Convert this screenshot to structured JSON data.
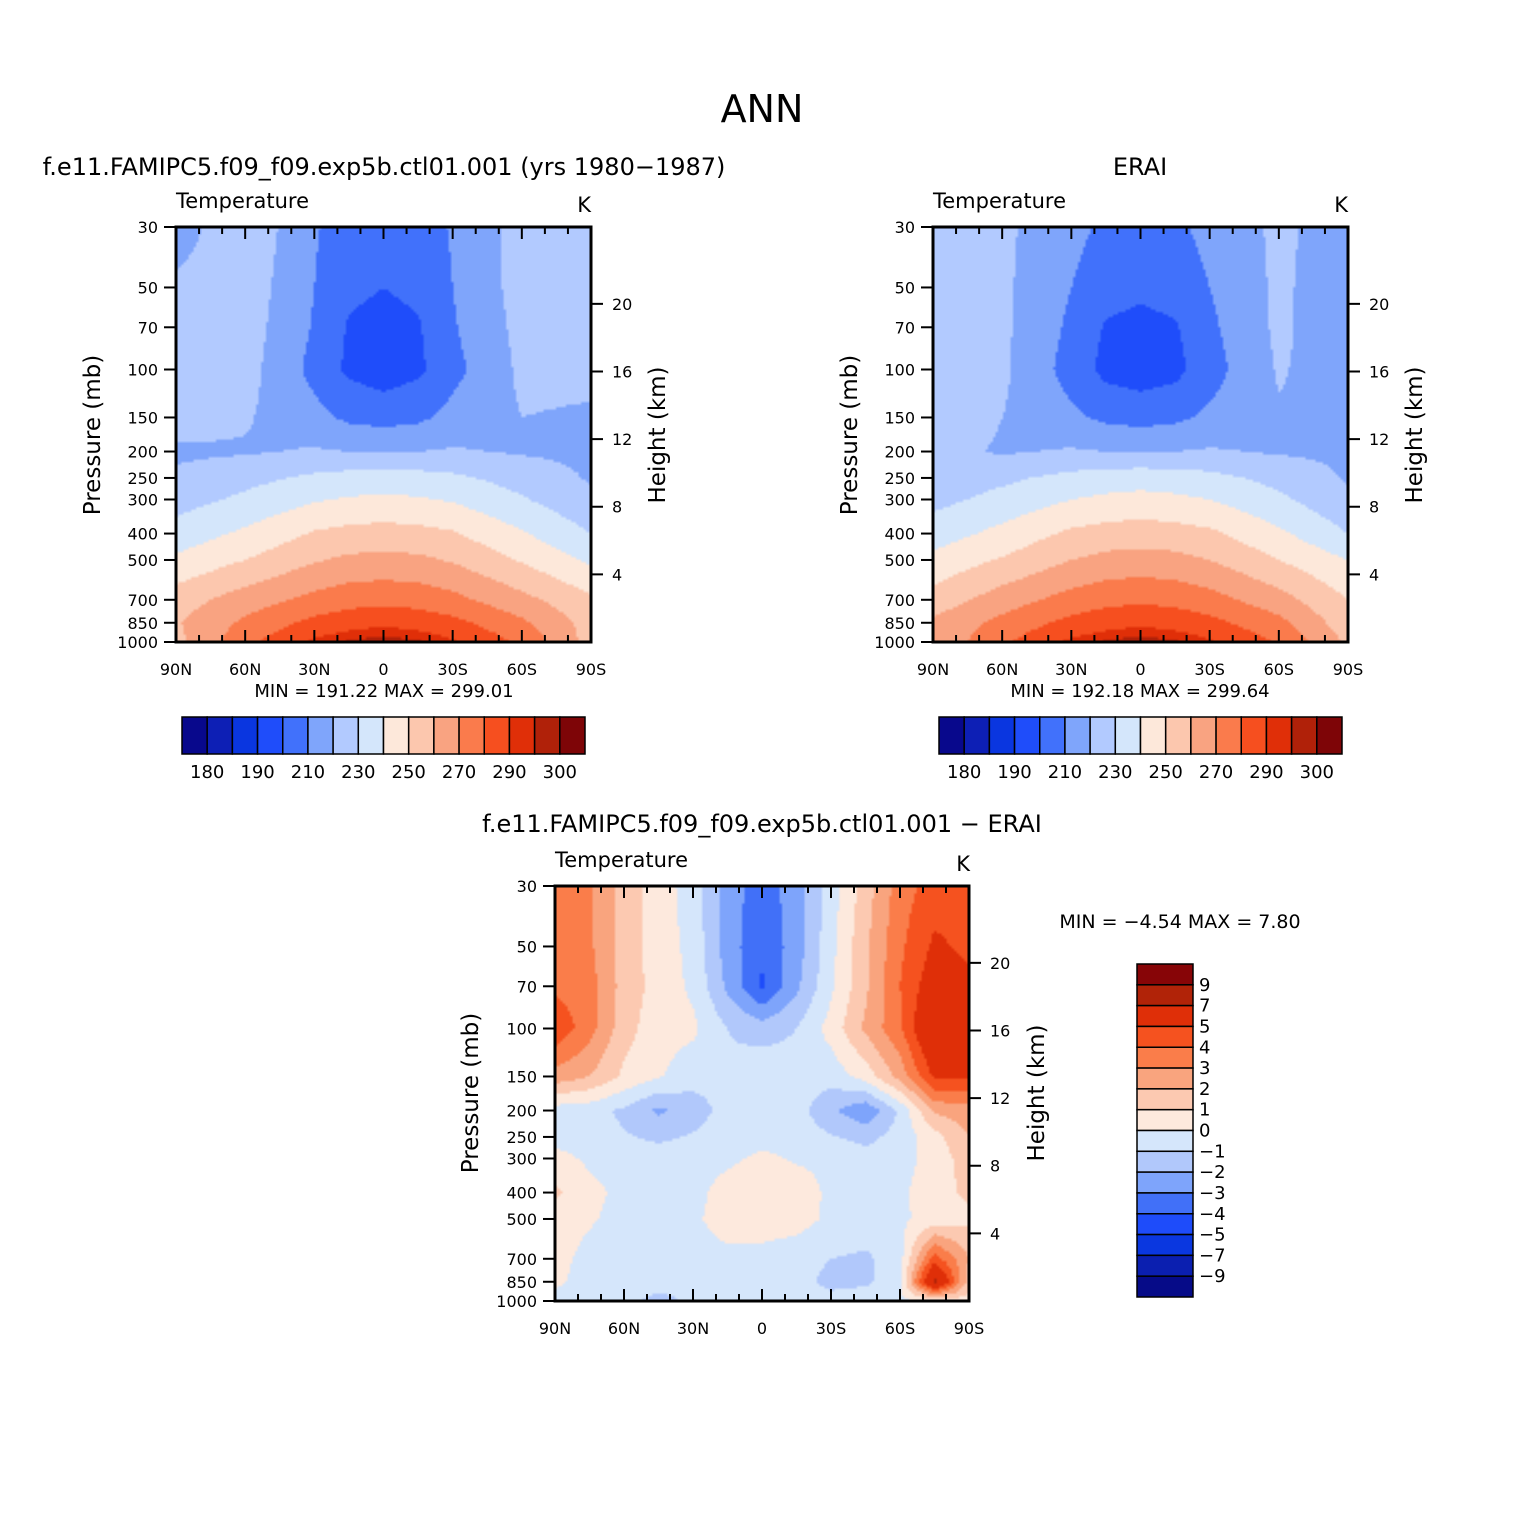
{
  "figure_title": "ANN",
  "colors": {
    "abs_palette": [
      "#08088c",
      "#0d1fb5",
      "#0a36e0",
      "#1f4dfa",
      "#4171fb",
      "#7fa5fb",
      "#b2caff",
      "#d4e6fb",
      "#fde8da",
      "#fcc7ae",
      "#f9a381",
      "#fa7b4c",
      "#f64f1f",
      "#e02f08",
      "#b02109",
      "#7e0507"
    ],
    "diff_palette": [
      "#060b88",
      "#0b1fb0",
      "#0a37e0",
      "#1e4cfa",
      "#4170f8",
      "#7ea4fb",
      "#b1c8fb",
      "#d5e6fb",
      "#fde9dd",
      "#fcc9b1",
      "#f9a47e",
      "#fa7d4a",
      "#f5521f",
      "#df2f08",
      "#b12308",
      "#870507"
    ]
  },
  "chart_data": [
    {
      "id": "model",
      "type": "heatmap",
      "title": "f.e11.FAMIPC5.f09_f09.exp5b.ctl01.001 (yrs 1980−1987)",
      "variable": "Temperature",
      "units": "K",
      "ylabel": "Pressure (mb)",
      "ylabel_right": "Height (km)",
      "x_ticks": [
        "90N",
        "60N",
        "30N",
        "0",
        "30S",
        "60S",
        "90S"
      ],
      "y_ticks": [
        "30",
        "50",
        "70",
        "100",
        "150",
        "200",
        "250",
        "300",
        "400",
        "500",
        "700",
        "850",
        "1000"
      ],
      "y_ticks_right": [
        "20",
        "16",
        "12",
        "8",
        "4"
      ],
      "xlim": [
        90,
        -90
      ],
      "ylim_mb": [
        1000,
        30
      ],
      "log_scale_y": true,
      "min_label": "MIN =  191.22   MAX =  299.01",
      "min": 191.22,
      "max": 299.01,
      "levels": [
        "180",
        "190",
        "210",
        "230",
        "250",
        "270",
        "290",
        "300"
      ],
      "palette": "abs_palette",
      "grid": {
        "lat": [
          90,
          60,
          30,
          15,
          0,
          -15,
          -30,
          -60,
          -90
        ],
        "p": [
          30,
          50,
          70,
          100,
          150,
          200,
          250,
          300,
          400,
          500,
          700,
          850,
          1000
        ],
        "values": [
          [
            215,
            228,
            211,
            205,
            203,
            205,
            211,
            224,
            223
          ],
          [
            222,
            226,
            210,
            202,
            200,
            202,
            210,
            224,
            224
          ],
          [
            224,
            225,
            209,
            199,
            197,
            199,
            209,
            223,
            223
          ],
          [
            225,
            224,
            207,
            198,
            195,
            198,
            207,
            222,
            222
          ],
          [
            226,
            221,
            213,
            208,
            206,
            208,
            213,
            220,
            219
          ],
          [
            218,
            219,
            221,
            220,
            220,
            220,
            221,
            219,
            218
          ],
          [
            222,
            227,
            232,
            234,
            234,
            234,
            232,
            226,
            219
          ],
          [
            226,
            232,
            239,
            241,
            242,
            241,
            239,
            231,
            222
          ],
          [
            234,
            242,
            251,
            253,
            254,
            253,
            251,
            241,
            230
          ],
          [
            242,
            250,
            259,
            262,
            263,
            262,
            259,
            249,
            238
          ],
          [
            255,
            265,
            273,
            276,
            277,
            276,
            273,
            263,
            252
          ],
          [
            259,
            272,
            283,
            286,
            288,
            286,
            283,
            272,
            256
          ],
          [
            257,
            277,
            292,
            296,
            298,
            296,
            291,
            278,
            256
          ]
        ]
      }
    },
    {
      "id": "obs",
      "type": "heatmap",
      "title": "ERAI",
      "variable": "Temperature",
      "units": "K",
      "ylabel": "Pressure (mb)",
      "ylabel_right": "Height (km)",
      "x_ticks": [
        "90N",
        "60N",
        "30N",
        "0",
        "30S",
        "60S",
        "90S"
      ],
      "y_ticks": [
        "30",
        "50",
        "70",
        "100",
        "150",
        "200",
        "250",
        "300",
        "400",
        "500",
        "700",
        "850",
        "1000"
      ],
      "y_ticks_right": [
        "20",
        "16",
        "12",
        "8",
        "4"
      ],
      "xlim": [
        90,
        -90
      ],
      "ylim_mb": [
        1000,
        30
      ],
      "log_scale_y": true,
      "min_label": "MIN =  192.18   MAX =  299.64",
      "min": 192.18,
      "max": 299.64,
      "levels": [
        "180",
        "190",
        "210",
        "230",
        "250",
        "270",
        "290",
        "300"
      ],
      "palette": "abs_palette",
      "grid": {
        "lat": [
          90,
          60,
          30,
          15,
          0,
          -15,
          -30,
          -60,
          -90
        ],
        "p": [
          30,
          50,
          70,
          100,
          150,
          200,
          250,
          300,
          400,
          500,
          700,
          850,
          1000
        ],
        "values": [
          [
            222,
            222,
            213,
            208,
            206,
            208,
            213,
            222,
            215
          ],
          [
            222,
            222,
            210,
            204,
            202,
            204,
            210,
            222,
            213
          ],
          [
            222,
            222,
            208,
            199,
            197,
            199,
            208,
            222,
            213
          ],
          [
            222,
            222,
            206,
            197,
            195,
            197,
            206,
            221,
            214
          ],
          [
            226,
            220,
            212,
            208,
            206,
            208,
            212,
            219,
            218
          ],
          [
            223,
            219,
            221,
            220,
            220,
            220,
            221,
            219,
            218
          ],
          [
            224,
            228,
            233,
            235,
            236,
            235,
            233,
            227,
            219
          ],
          [
            227,
            233,
            240,
            242,
            243,
            242,
            240,
            232,
            222
          ],
          [
            235,
            243,
            252,
            254,
            255,
            254,
            252,
            242,
            230
          ],
          [
            243,
            251,
            260,
            263,
            264,
            263,
            260,
            250,
            240
          ],
          [
            254,
            265,
            274,
            277,
            278,
            277,
            274,
            264,
            250
          ],
          [
            262,
            273,
            283,
            286,
            288,
            286,
            283,
            273,
            254
          ],
          [
            262,
            278,
            292,
            296,
            298,
            296,
            291,
            279,
            258
          ]
        ]
      }
    },
    {
      "id": "diff",
      "type": "heatmap",
      "title": "f.e11.FAMIPC5.f09_f09.exp5b.ctl01.001 − ERAI",
      "variable": "Temperature",
      "units": "K",
      "ylabel": "Pressure (mb)",
      "ylabel_right": "Height (km)",
      "x_ticks": [
        "90N",
        "60N",
        "30N",
        "0",
        "30S",
        "60S",
        "90S"
      ],
      "y_ticks": [
        "30",
        "50",
        "70",
        "100",
        "150",
        "200",
        "250",
        "300",
        "400",
        "500",
        "700",
        "850",
        "1000"
      ],
      "y_ticks_right": [
        "20",
        "16",
        "12",
        "8",
        "4"
      ],
      "xlim": [
        90,
        -90
      ],
      "ylim_mb": [
        1000,
        30
      ],
      "log_scale_y": true,
      "min_label": "MIN =    −4.54   MAX =     7.80",
      "min": -4.54,
      "max": 7.8,
      "levels": [
        "9",
        "7",
        "5",
        "4",
        "3",
        "2",
        "1",
        "0",
        "−1",
        "−2",
        "−3",
        "−4",
        "−5",
        "−7",
        "−9"
      ],
      "palette": "diff_palette",
      "grid": {
        "lat": [
          90,
          75,
          60,
          45,
          30,
          15,
          0,
          -15,
          -30,
          -45,
          -60,
          -75,
          -90
        ],
        "p": [
          30,
          50,
          70,
          100,
          150,
          200,
          250,
          300,
          400,
          500,
          700,
          850,
          1000
        ],
        "values": [
          [
            3.5,
            3.2,
            1.5,
            0.5,
            -0.5,
            -2.5,
            -3.5,
            -2.5,
            -0.5,
            1.5,
            3.5,
            4.5,
            4.2
          ],
          [
            3.5,
            3.2,
            1.5,
            0.5,
            -0.3,
            -2.5,
            -3.8,
            -2.5,
            -0.3,
            1.8,
            3.8,
            5.2,
            4.8
          ],
          [
            3.8,
            3.4,
            1.6,
            0.6,
            -0.2,
            -2.2,
            -4.2,
            -2.2,
            -0.2,
            1.8,
            4.0,
            5.8,
            5.2
          ],
          [
            4.8,
            3.4,
            1.4,
            0.4,
            0.2,
            -1.0,
            -1.5,
            -1.0,
            0.4,
            2.2,
            3.8,
            6.8,
            5.8
          ],
          [
            2.6,
            2.0,
            0.8,
            0.1,
            -0.6,
            -0.8,
            -0.2,
            -0.5,
            -0.6,
            0.4,
            2.4,
            5.2,
            5.2
          ],
          [
            -0.5,
            -0.6,
            -1.2,
            -2.2,
            -1.5,
            -0.6,
            -0.4,
            -0.6,
            -1.8,
            -2.8,
            -0.8,
            2.2,
            2.5
          ],
          [
            -0.4,
            -0.6,
            -0.9,
            -1.2,
            -0.9,
            -0.4,
            -0.3,
            -0.4,
            -0.9,
            -1.3,
            -0.6,
            0.6,
            2.0
          ],
          [
            0.4,
            -0.2,
            -0.4,
            -0.5,
            -0.4,
            -0.2,
            0.2,
            -0.1,
            -0.2,
            -0.6,
            -0.4,
            0.4,
            1.5
          ],
          [
            1.2,
            0.3,
            -0.3,
            -0.5,
            -0.3,
            0.4,
            0.7,
            0.5,
            -0.2,
            -0.4,
            -0.2,
            0.6,
            1.2
          ],
          [
            0.5,
            0.1,
            -0.3,
            -0.4,
            -0.2,
            0.5,
            0.6,
            0.4,
            -0.2,
            -0.3,
            -0.2,
            0.4,
            0.8
          ],
          [
            0.3,
            -0.3,
            -0.4,
            -0.5,
            -0.4,
            -0.3,
            -0.4,
            -0.6,
            -1.0,
            -1.2,
            -0.4,
            4.5,
            2.0
          ],
          [
            0.2,
            -0.4,
            -0.5,
            -0.6,
            -0.8,
            -0.4,
            -0.3,
            -0.6,
            -1.3,
            -1.2,
            -0.3,
            7.5,
            1.5
          ],
          [
            -0.3,
            -1.0,
            -0.7,
            -1.3,
            -0.8,
            -0.5,
            -0.2,
            -0.4,
            -0.6,
            -0.4,
            -0.2,
            0.2,
            0.6
          ]
        ]
      }
    }
  ]
}
